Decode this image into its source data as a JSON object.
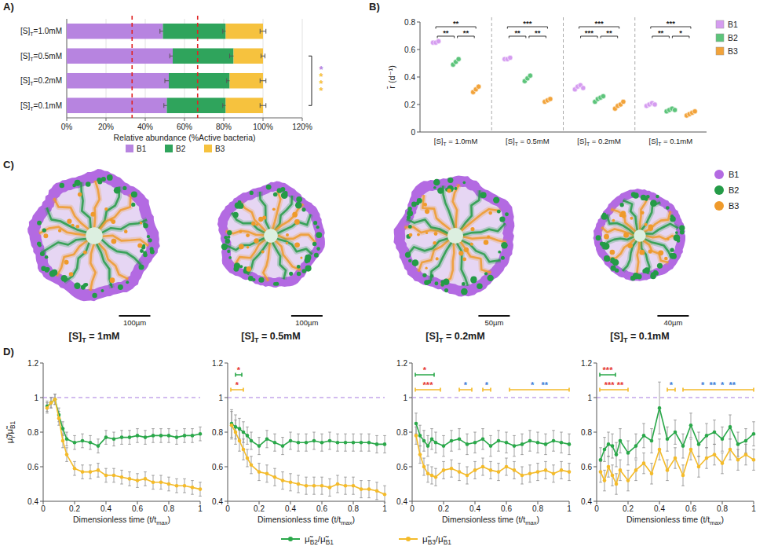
{
  "chart_data": [
    {
      "type": "bar",
      "title": "A)",
      "orientation": "horizontal",
      "stacked": true,
      "grid": true,
      "legend": "bottom",
      "categories": [
        "[S]T=1.0mM",
        "[S]T=0.5mM",
        "[S]T=0.2mM",
        "[S]T=0.1mM"
      ],
      "series": [
        {
          "name": "B1",
          "color": "#b784e0",
          "values": [
            49,
            54,
            52,
            51
          ],
          "errors": [
            1.5,
            1.5,
            2,
            1.5
          ]
        },
        {
          "name": "B2",
          "color": "#2fa45c",
          "values": [
            32,
            31,
            31,
            30
          ],
          "errors": [
            1.5,
            2,
            1.5,
            1.5
          ]
        },
        {
          "name": "B3",
          "color": "#f6c23e",
          "values": [
            19,
            15,
            17,
            19
          ],
          "errors": [
            1.5,
            1,
            1.5,
            1.5
          ]
        }
      ],
      "xlabel": "Relative abundance (%Active bacteria)",
      "xlim": [
        0,
        120
      ],
      "xticks": [
        {
          "value": 0,
          "label": "0%"
        },
        {
          "value": 20,
          "label": "20%"
        },
        {
          "value": 40,
          "label": "40%"
        },
        {
          "value": 60,
          "label": "60%"
        },
        {
          "value": 80,
          "label": "80%"
        },
        {
          "value": 100,
          "label": "100%"
        },
        {
          "value": 120,
          "label": "120%"
        }
      ],
      "reference_lines": [
        33.3,
        66.7
      ],
      "annotations": [
        {
          "categories": [
            1,
            3
          ],
          "text": "*",
          "color": "#b784e0"
        },
        {
          "categories": [
            1,
            3
          ],
          "text": "***",
          "color": "#f6c23e"
        }
      ]
    },
    {
      "type": "scatter",
      "title": "B)",
      "legend": "right",
      "grid": false,
      "ylabel": "r̄ (d⁻¹)",
      "categories": [
        "[S]T = 1.0mM",
        "[S]T = 0.5mM",
        "[S]T = 0.2mM",
        "[S]T = 0.1mM"
      ],
      "ylim": [
        0,
        0.8
      ],
      "yticks": [
        0,
        0.2,
        0.4,
        0.6,
        0.8
      ],
      "series": [
        {
          "name": "B1",
          "color": "#d59cf0",
          "values": [
            [
              0.65,
              0.65,
              0.66
            ],
            [
              0.53,
              0.53,
              0.54
            ],
            [
              0.31,
              0.33,
              0.34,
              0.32
            ],
            [
              0.19,
              0.2,
              0.21,
              0.2
            ]
          ]
        },
        {
          "name": "B2",
          "color": "#5cc47a",
          "values": [
            [
              0.49,
              0.51,
              0.53
            ],
            [
              0.37,
              0.39,
              0.41
            ],
            [
              0.22,
              0.24,
              0.25,
              0.26
            ],
            [
              0.15,
              0.16,
              0.17,
              0.16
            ]
          ]
        },
        {
          "name": "B3",
          "color": "#f2a33a",
          "values": [
            [
              0.29,
              0.31,
              0.33
            ],
            [
              0.22,
              0.23,
              0.24
            ],
            [
              0.17,
              0.19,
              0.2,
              0.22
            ],
            [
              0.12,
              0.13,
              0.14,
              0.15
            ]
          ]
        }
      ],
      "comparisons": [
        {
          "group": 0,
          "pair": [
            0,
            2
          ],
          "label": "**"
        },
        {
          "group": 0,
          "pair": [
            0,
            1
          ],
          "label": "**"
        },
        {
          "group": 0,
          "pair": [
            1,
            2
          ],
          "label": "**"
        },
        {
          "group": 1,
          "pair": [
            0,
            2
          ],
          "label": "***"
        },
        {
          "group": 1,
          "pair": [
            0,
            1
          ],
          "label": "**"
        },
        {
          "group": 1,
          "pair": [
            1,
            2
          ],
          "label": "**"
        },
        {
          "group": 2,
          "pair": [
            0,
            2
          ],
          "label": "***"
        },
        {
          "group": 2,
          "pair": [
            0,
            1
          ],
          "label": "***"
        },
        {
          "group": 2,
          "pair": [
            1,
            2
          ],
          "label": "**"
        },
        {
          "group": 3,
          "pair": [
            0,
            2
          ],
          "label": "***"
        },
        {
          "group": 3,
          "pair": [
            0,
            1
          ],
          "label": "**"
        },
        {
          "group": 3,
          "pair": [
            1,
            2
          ],
          "label": "*"
        }
      ]
    },
    {
      "type": "image",
      "title": "C)",
      "legend": "right",
      "categories": [
        "[S]T = 1mM",
        "[S]T = 0.5mM",
        "[S]T = 0.2mM",
        "[S]T = 0.1mM"
      ],
      "scale_bars": [
        "100µm",
        "100µm",
        "50µm",
        "40µm"
      ],
      "series": [
        {
          "name": "B1",
          "color": "#b36ae2"
        },
        {
          "name": "B2",
          "color": "#249b47"
        },
        {
          "name": "B3",
          "color": "#ef9a2b"
        }
      ]
    },
    {
      "type": "line",
      "title": "D)",
      "marker": "circle",
      "legend": "bottom",
      "ylabel": "μ̃i/μ̃B1",
      "xlabel": "Dimensionless time (t/tmax)",
      "xlim": [
        0,
        1
      ],
      "xticks": [
        0,
        0.2,
        0.4,
        0.6,
        0.8,
        1
      ],
      "ylim": [
        0.4,
        1.2
      ],
      "yticks": [
        0.4,
        0.6,
        0.8,
        1,
        1.2
      ],
      "reference_line": 1,
      "x": [
        0.025,
        0.05,
        0.075,
        0.1,
        0.125,
        0.15,
        0.2,
        0.25,
        0.3,
        0.35,
        0.4,
        0.45,
        0.5,
        0.55,
        0.6,
        0.65,
        0.7,
        0.75,
        0.8,
        0.85,
        0.9,
        0.95,
        1
      ],
      "series": [
        {
          "name": "μ̃B2/μ̃B1",
          "color": "#2aa84a",
          "values": [
            0.95,
            0.97,
            0.99,
            0.9,
            0.82,
            0.76,
            0.74,
            0.75,
            0.74,
            0.72,
            0.77,
            0.76,
            0.77,
            0.77,
            0.78,
            0.77,
            0.78,
            0.78,
            0.78,
            0.77,
            0.78,
            0.78,
            0.79
          ],
          "errors": [
            0.03,
            0.03,
            0.03,
            0.04,
            0.04,
            0.04,
            0.04,
            0.04,
            0.04,
            0.04,
            0.04,
            0.04,
            0.04,
            0.04,
            0.04,
            0.04,
            0.04,
            0.04,
            0.04,
            0.04,
            0.04,
            0.04,
            0.04
          ]
        },
        {
          "name": "μ̃B3/μ̃B1",
          "color": "#f4bb2a",
          "values": [
            0.94,
            0.97,
            0.99,
            0.88,
            0.75,
            0.67,
            0.59,
            0.57,
            0.57,
            0.58,
            0.55,
            0.55,
            0.54,
            0.53,
            0.52,
            0.53,
            0.51,
            0.51,
            0.5,
            0.49,
            0.49,
            0.48,
            0.47
          ],
          "errors": [
            0.03,
            0.03,
            0.03,
            0.04,
            0.04,
            0.04,
            0.04,
            0.04,
            0.04,
            0.04,
            0.04,
            0.04,
            0.04,
            0.04,
            0.04,
            0.04,
            0.04,
            0.04,
            0.04,
            0.04,
            0.04,
            0.04,
            0.04
          ]
        }
      ],
      "annotations": []
    },
    {
      "type": "line",
      "marker": "circle",
      "xlabel": "Dimensionless time (t/tmax)",
      "xlim": [
        0,
        1
      ],
      "xticks": [
        0,
        0.2,
        0.4,
        0.6,
        0.8,
        1
      ],
      "ylim": [
        0.4,
        1.2
      ],
      "yticks": [
        0.4,
        0.6,
        0.8,
        1,
        1.2
      ],
      "reference_line": 1,
      "x": [
        0.025,
        0.05,
        0.075,
        0.1,
        0.125,
        0.15,
        0.2,
        0.25,
        0.3,
        0.35,
        0.4,
        0.45,
        0.5,
        0.55,
        0.6,
        0.65,
        0.7,
        0.75,
        0.8,
        0.85,
        0.9,
        0.95,
        1
      ],
      "series": [
        {
          "color": "#2aa84a",
          "values": [
            0.85,
            0.83,
            0.82,
            0.8,
            0.78,
            0.75,
            0.72,
            0.76,
            0.74,
            0.72,
            0.75,
            0.74,
            0.74,
            0.75,
            0.74,
            0.75,
            0.74,
            0.74,
            0.74,
            0.74,
            0.74,
            0.73,
            0.73
          ],
          "errors": [
            0.08,
            0.07,
            0.06,
            0.06,
            0.05,
            0.05,
            0.05,
            0.05,
            0.05,
            0.05,
            0.05,
            0.05,
            0.05,
            0.05,
            0.05,
            0.05,
            0.05,
            0.05,
            0.05,
            0.05,
            0.05,
            0.05,
            0.05
          ]
        },
        {
          "color": "#f4bb2a",
          "values": [
            0.84,
            0.8,
            0.75,
            0.7,
            0.65,
            0.61,
            0.57,
            0.56,
            0.54,
            0.52,
            0.51,
            0.5,
            0.49,
            0.49,
            0.49,
            0.48,
            0.5,
            0.49,
            0.49,
            0.47,
            0.47,
            0.46,
            0.44
          ],
          "errors": [
            0.08,
            0.07,
            0.06,
            0.06,
            0.05,
            0.05,
            0.05,
            0.05,
            0.05,
            0.05,
            0.05,
            0.05,
            0.05,
            0.05,
            0.05,
            0.05,
            0.05,
            0.05,
            0.05,
            0.05,
            0.05,
            0.05,
            0.05
          ]
        }
      ],
      "annotations": [
        {
          "series": 0,
          "x": [
            0.05,
            0.09
          ],
          "text": "*",
          "color": "#e53935"
        },
        {
          "series": 1,
          "x": [
            0.02,
            0.1
          ],
          "text": "*",
          "color": "#e53935"
        }
      ]
    },
    {
      "type": "line",
      "marker": "circle",
      "xlabel": "Dimensionless time (t/tmax)",
      "xlim": [
        0,
        1
      ],
      "xticks": [
        0,
        0.2,
        0.4,
        0.6,
        0.8,
        1
      ],
      "ylim": [
        0.4,
        1.2
      ],
      "yticks": [
        0.4,
        0.6,
        0.8,
        1,
        1.2
      ],
      "reference_line": 1,
      "x": [
        0.025,
        0.05,
        0.075,
        0.1,
        0.125,
        0.15,
        0.2,
        0.25,
        0.3,
        0.35,
        0.4,
        0.45,
        0.5,
        0.55,
        0.6,
        0.65,
        0.7,
        0.75,
        0.8,
        0.85,
        0.9,
        0.95,
        1
      ],
      "series": [
        {
          "color": "#2aa84a",
          "values": [
            0.85,
            0.78,
            0.75,
            0.72,
            0.76,
            0.74,
            0.72,
            0.75,
            0.76,
            0.73,
            0.74,
            0.76,
            0.72,
            0.75,
            0.74,
            0.72,
            0.73,
            0.75,
            0.74,
            0.73,
            0.75,
            0.74,
            0.73
          ],
          "errors": [
            0.06,
            0.06,
            0.06,
            0.06,
            0.06,
            0.06,
            0.06,
            0.06,
            0.06,
            0.06,
            0.06,
            0.06,
            0.06,
            0.06,
            0.06,
            0.06,
            0.06,
            0.06,
            0.06,
            0.06,
            0.06,
            0.06,
            0.06
          ]
        },
        {
          "color": "#f4bb2a",
          "values": [
            0.78,
            0.67,
            0.6,
            0.56,
            0.55,
            0.54,
            0.58,
            0.59,
            0.57,
            0.55,
            0.58,
            0.6,
            0.58,
            0.57,
            0.6,
            0.58,
            0.55,
            0.56,
            0.57,
            0.58,
            0.56,
            0.58,
            0.57
          ],
          "errors": [
            0.05,
            0.05,
            0.05,
            0.05,
            0.05,
            0.05,
            0.05,
            0.05,
            0.05,
            0.05,
            0.05,
            0.05,
            0.05,
            0.05,
            0.05,
            0.05,
            0.05,
            0.05,
            0.05,
            0.05,
            0.05,
            0.05,
            0.05
          ]
        }
      ],
      "annotations": [
        {
          "series": 0,
          "x": [
            0.02,
            0.14
          ],
          "text": "*",
          "color": "#e53935"
        },
        {
          "series": 1,
          "x": [
            0.02,
            0.18
          ],
          "text": "***",
          "color": "#e53935"
        },
        {
          "series": 1,
          "x": [
            0.3,
            0.38
          ],
          "text": "*",
          "color": "#3f7fd8"
        },
        {
          "series": 1,
          "x": [
            0.45,
            0.5
          ],
          "text": "*",
          "color": "#3f7fd8"
        },
        {
          "series": 1,
          "x": [
            0.62,
            1
          ],
          "text": "*   **",
          "color": "#3f7fd8"
        }
      ]
    },
    {
      "type": "line",
      "marker": "circle",
      "xlabel": "Dimensionless time (t/tmax)",
      "xlim": [
        0,
        1
      ],
      "xticks": [
        0,
        0.2,
        0.4,
        0.6,
        0.8,
        1
      ],
      "ylim": [
        0.4,
        1.2
      ],
      "yticks": [
        0.4,
        0.6,
        0.8,
        1,
        1.2
      ],
      "reference_line": 1,
      "x": [
        0.025,
        0.05,
        0.075,
        0.1,
        0.125,
        0.15,
        0.2,
        0.25,
        0.3,
        0.35,
        0.4,
        0.45,
        0.5,
        0.55,
        0.6,
        0.65,
        0.7,
        0.75,
        0.8,
        0.85,
        0.9,
        0.95,
        1
      ],
      "series": [
        {
          "color": "#2aa84a",
          "values": [
            0.64,
            0.7,
            0.73,
            0.72,
            0.67,
            0.75,
            0.68,
            0.72,
            0.78,
            0.75,
            0.94,
            0.76,
            0.8,
            0.72,
            0.84,
            0.73,
            0.78,
            0.8,
            0.76,
            0.83,
            0.73,
            0.75,
            0.79
          ],
          "errors": [
            0.07,
            0.07,
            0.07,
            0.07,
            0.07,
            0.07,
            0.07,
            0.07,
            0.07,
            0.07,
            0.15,
            0.07,
            0.07,
            0.07,
            0.07,
            0.07,
            0.07,
            0.07,
            0.07,
            0.07,
            0.07,
            0.07,
            0.07
          ]
        },
        {
          "color": "#f4bb2a",
          "values": [
            0.57,
            0.52,
            0.6,
            0.55,
            0.5,
            0.58,
            0.52,
            0.58,
            0.62,
            0.56,
            0.7,
            0.58,
            0.65,
            0.55,
            0.7,
            0.6,
            0.65,
            0.67,
            0.62,
            0.7,
            0.64,
            0.67,
            0.64
          ],
          "errors": [
            0.06,
            0.06,
            0.06,
            0.06,
            0.06,
            0.06,
            0.06,
            0.06,
            0.06,
            0.06,
            0.06,
            0.06,
            0.06,
            0.06,
            0.06,
            0.06,
            0.06,
            0.06,
            0.06,
            0.06,
            0.06,
            0.06,
            0.06
          ]
        }
      ],
      "annotations": [
        {
          "series": 0,
          "x": [
            0.02,
            0.12
          ],
          "text": "***",
          "color": "#e53935"
        },
        {
          "series": 1,
          "x": [
            0.02,
            0.2
          ],
          "text": "*** **",
          "color": "#e53935"
        },
        {
          "series": 1,
          "x": [
            0.45,
            0.5
          ],
          "text": "*",
          "color": "#3f7fd8"
        },
        {
          "series": 1,
          "x": [
            0.55,
            1
          ],
          "text": "*  **  *  **",
          "color": "#3f7fd8"
        }
      ]
    }
  ]
}
